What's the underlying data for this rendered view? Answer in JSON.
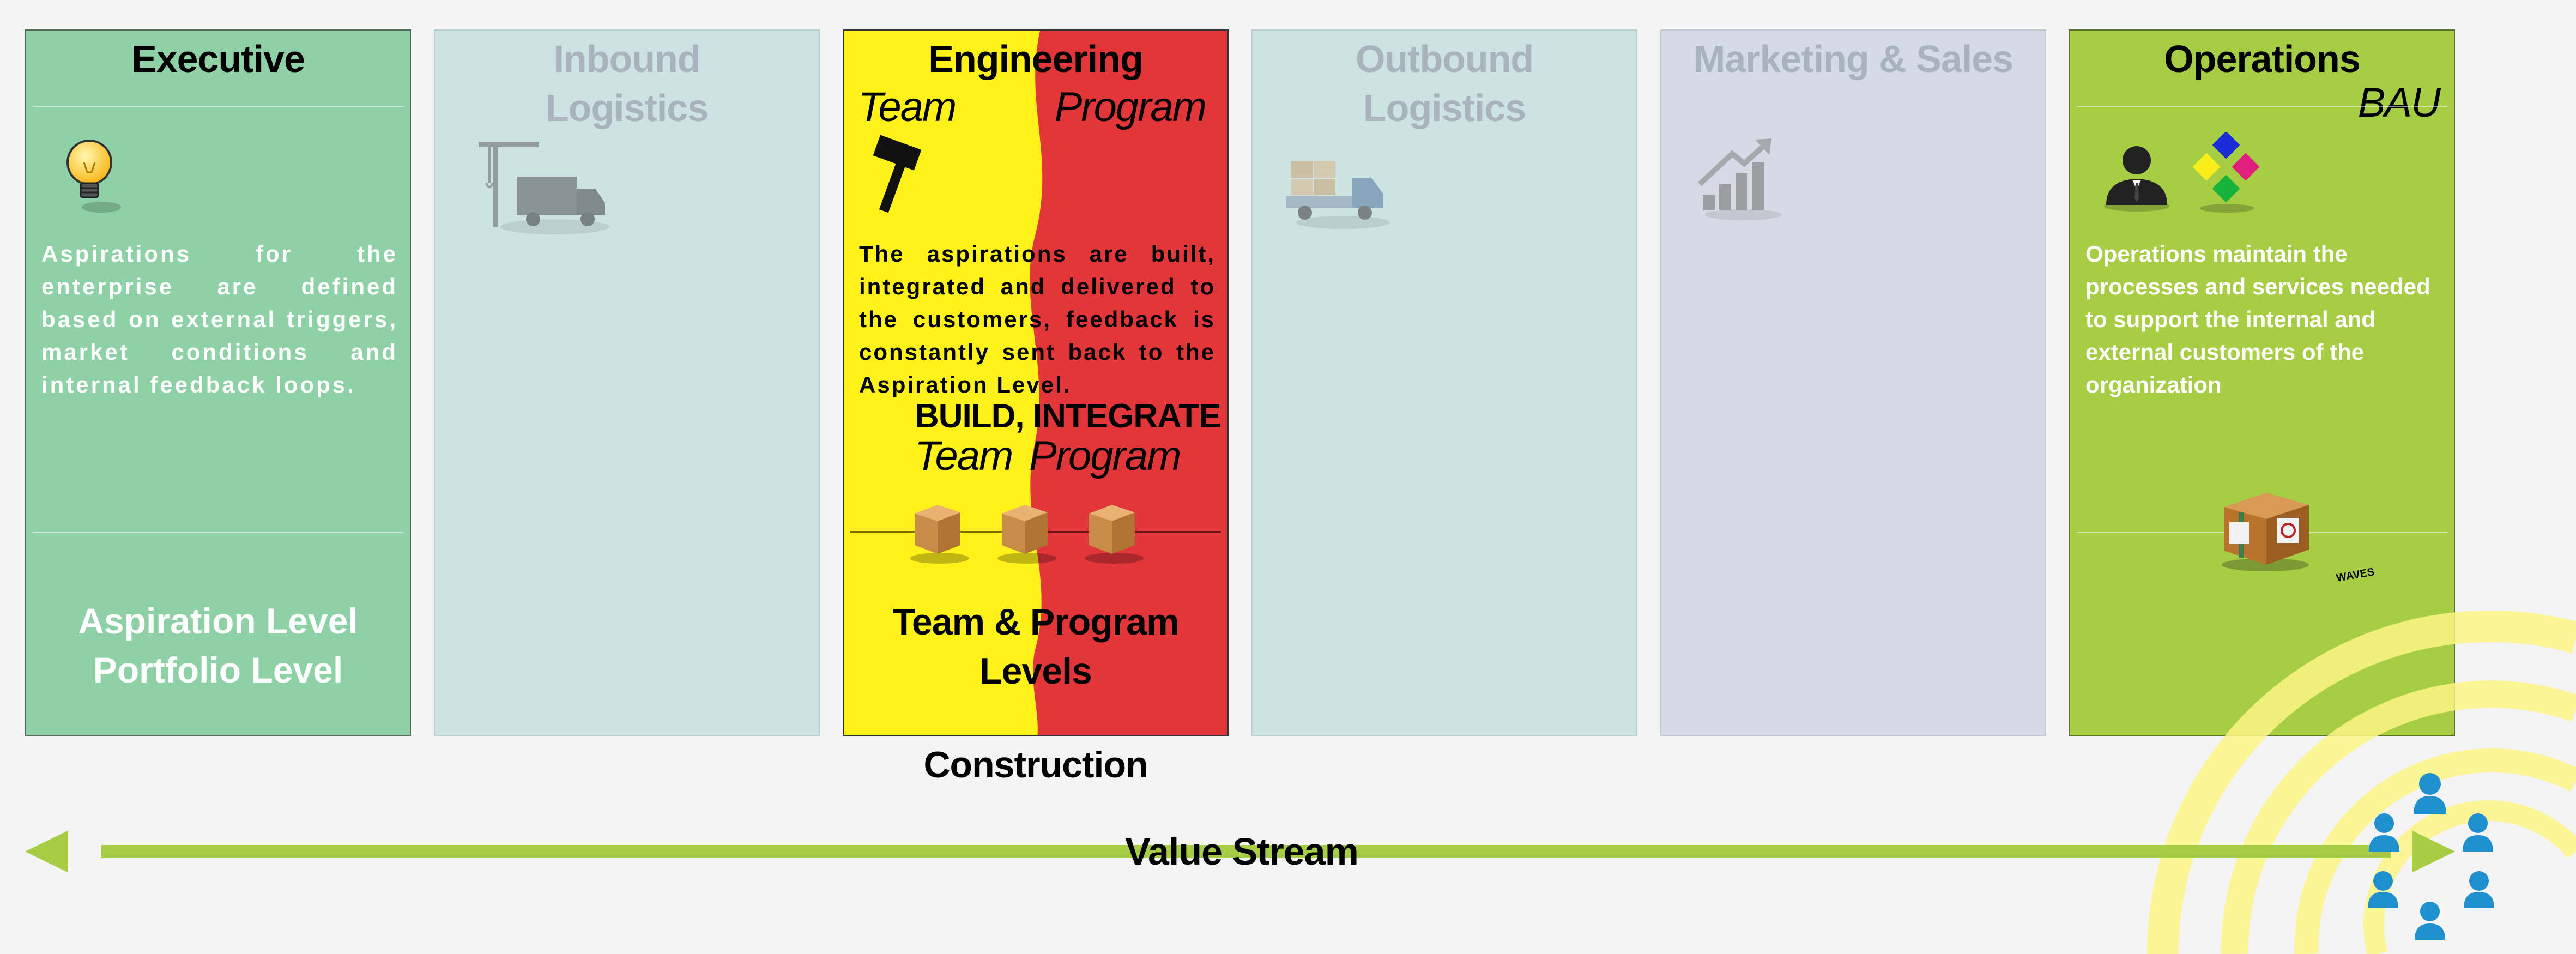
{
  "columns": {
    "executive": {
      "title": "Executive",
      "description": "Aspirations for the enterprise are defined based on external triggers, market conditions and internal feedback loops.",
      "level_line1": "Aspiration Level",
      "level_line2": "Portfolio Level",
      "icon": "lightbulb-icon",
      "color": "#8fd1a7"
    },
    "inbound_logistics": {
      "title_line1": "Inbound",
      "title_line2": "Logistics",
      "icon": "crane-truck-icon",
      "color": "#cce2e3"
    },
    "engineering": {
      "title": "Engineering",
      "team_label": "Team",
      "program_label": "Program",
      "description": "The aspirations are built, integrated and delivered to the customers, feedback is constantly sent back to the Aspiration Level.",
      "build_label": "BUILD, INTEGRATE",
      "team_label2": "Team",
      "program_label2": "Program",
      "level_line1": "Team & Program",
      "level_line2": "Levels",
      "under_label": "Construction",
      "icon": "hammer-icon",
      "team_color": "#fff21a",
      "program_color": "#e3363a"
    },
    "outbound_logistics": {
      "title_line1": "Outbound",
      "title_line2": "Logistics",
      "icon": "delivery-truck-icon",
      "color": "#cce2e3"
    },
    "marketing_sales": {
      "title": "Marketing & Sales",
      "icon": "growth-chart-icon",
      "color": "#d4dbe4"
    },
    "operations": {
      "title": "Operations",
      "subtitle": "BAU",
      "description": "Operations maintain the processes and services needed to support the internal and external customers of the organization",
      "waves_label": "WAVES",
      "icon": "business-person-icon",
      "color": "#a7cd45"
    }
  },
  "value_stream": {
    "label": "Value Stream",
    "color": "#a7cd45"
  },
  "waves": {
    "color": "#fbf584",
    "icon": "customers-icon"
  }
}
